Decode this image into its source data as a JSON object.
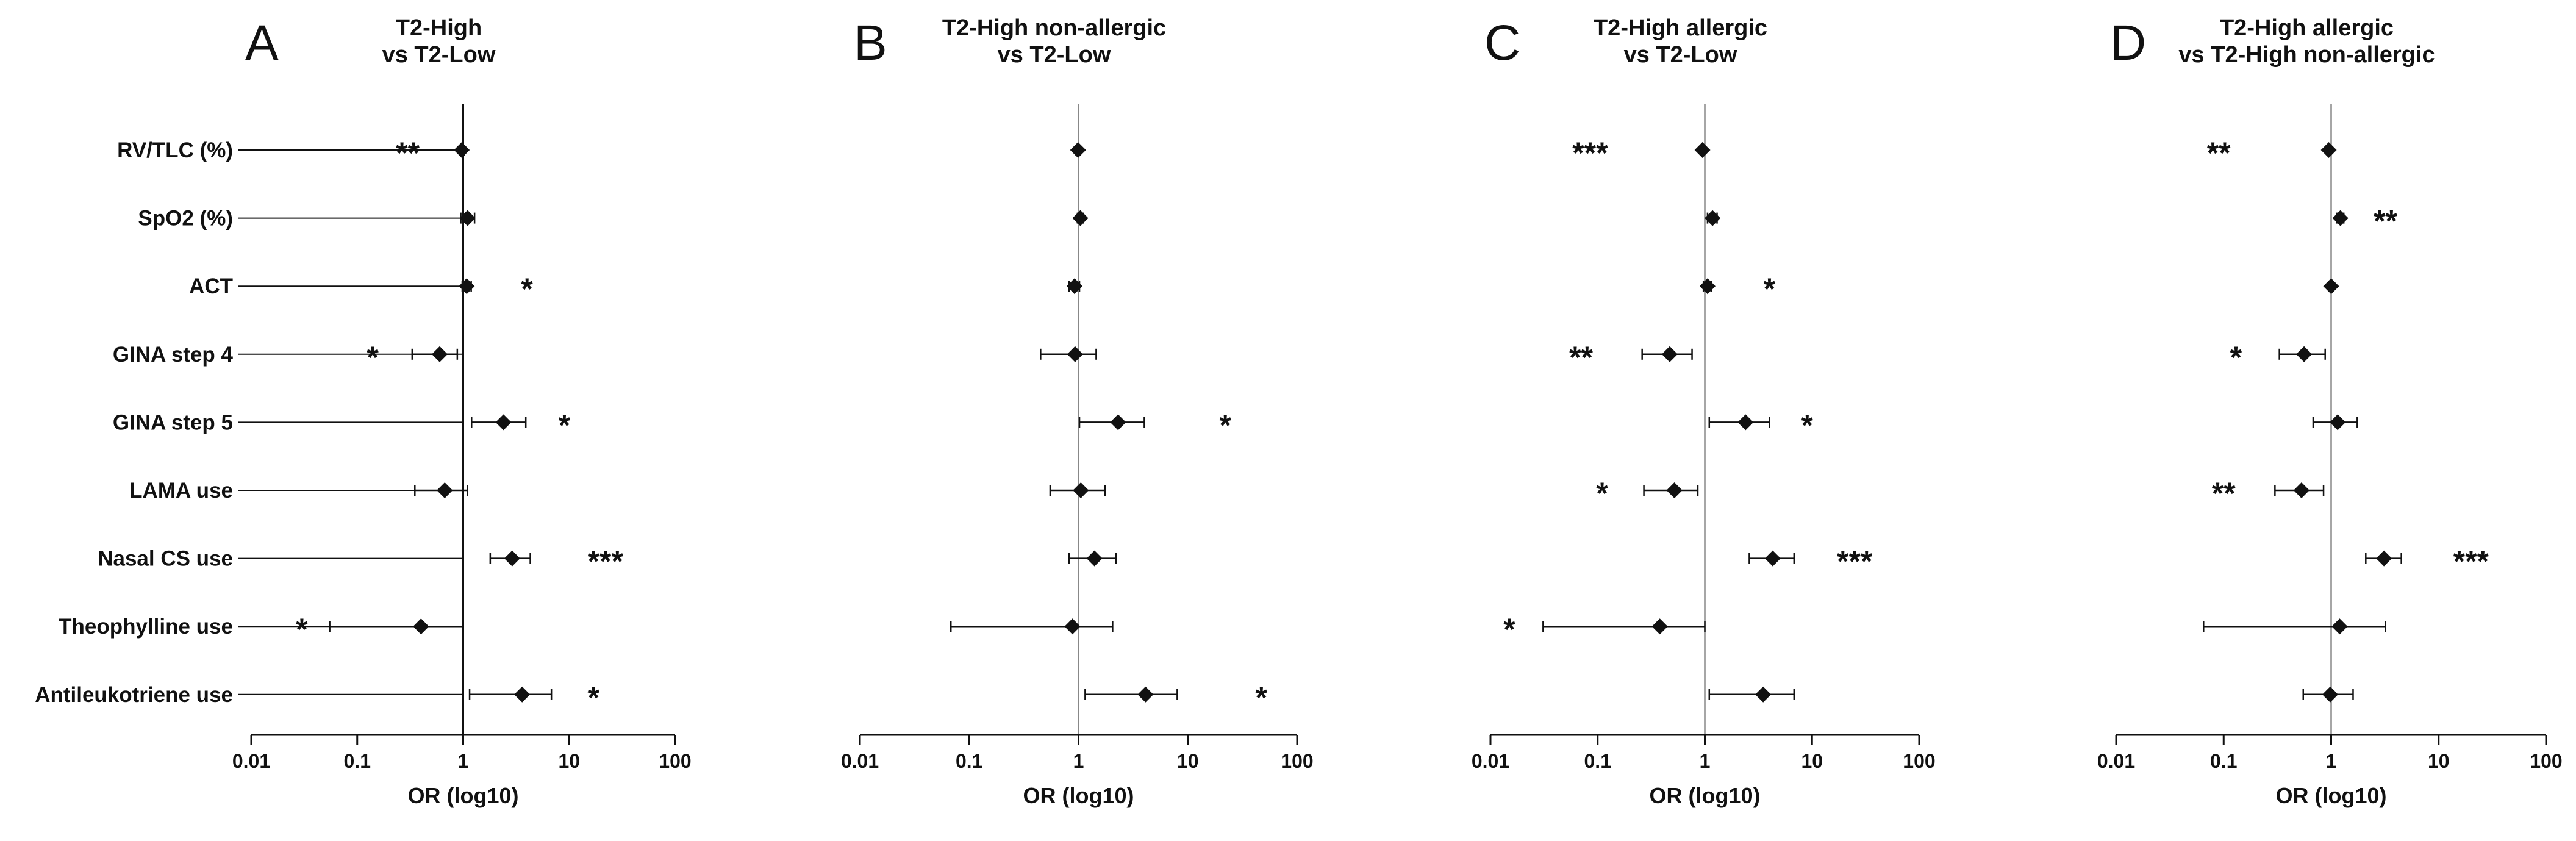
{
  "chart_data": [
    {
      "type": "forest",
      "letter": "A",
      "title": [
        "T2-High",
        "vs T2-Low"
      ],
      "xlabel": "OR (log10)",
      "xscale": "log",
      "xlim": [
        0.01,
        100
      ],
      "xticks": [
        "0.01",
        "0.1",
        "1",
        "10",
        "100"
      ],
      "reference_line": 1,
      "show_category_labels": true,
      "categories": [
        "RV/TLC (%)",
        "SpO2 (%)",
        "ACT",
        "GINA step 4",
        "GINA step 5",
        "LAMA use",
        "Nasal CS use",
        "Theophylline use",
        "Antileukotriene use"
      ],
      "or": [
        0.97,
        1.1,
        1.08,
        0.6,
        2.4,
        0.67,
        2.9,
        0.4,
        3.6
      ],
      "ci_low": [
        0.93,
        0.95,
        0.98,
        0.33,
        1.2,
        0.35,
        1.8,
        0.055,
        1.15
      ],
      "ci_high": [
        1.02,
        1.28,
        1.19,
        0.88,
        3.9,
        1.1,
        4.3,
        1.0,
        6.8
      ],
      "significance": [
        "**",
        "",
        "*",
        "*",
        "*",
        "",
        "***",
        "*",
        "*"
      ],
      "sig_x": [
        0.3,
        null,
        4.0,
        0.14,
        9.0,
        null,
        22,
        0.03,
        17
      ]
    },
    {
      "type": "forest",
      "letter": "B",
      "title": [
        "T2-High non-allergic",
        "vs T2-Low"
      ],
      "xlabel": "OR (log10)",
      "xscale": "log",
      "xlim": [
        0.01,
        100
      ],
      "xticks": [
        "0.01",
        "0.1",
        "1",
        "10",
        "100"
      ],
      "reference_line": 1,
      "show_category_labels": false,
      "categories": [
        "RV/TLC (%)",
        "SpO2 (%)",
        "ACT",
        "GINA step 4",
        "GINA step 5",
        "LAMA use",
        "Nasal CS use",
        "Theophylline use",
        "Antileukotriene use"
      ],
      "or": [
        0.99,
        1.04,
        0.92,
        0.93,
        2.3,
        1.05,
        1.4,
        0.88,
        4.1
      ],
      "ci_low": [
        0.95,
        0.98,
        0.82,
        0.45,
        1.02,
        0.55,
        0.82,
        0.068,
        1.15
      ],
      "ci_high": [
        1.03,
        1.1,
        1.02,
        1.45,
        4.0,
        1.75,
        2.2,
        2.05,
        8.0
      ],
      "significance": [
        "",
        "",
        "",
        "",
        "*",
        "",
        "",
        "",
        "*"
      ],
      "sig_x": [
        null,
        null,
        null,
        null,
        22,
        null,
        null,
        null,
        47
      ]
    },
    {
      "type": "forest",
      "letter": "C",
      "title": [
        "T2-High allergic",
        "vs T2-Low"
      ],
      "xlabel": "OR (log10)",
      "xscale": "log",
      "xlim": [
        0.01,
        100
      ],
      "xticks": [
        "0.01",
        "0.1",
        "1",
        "10",
        "100"
      ],
      "reference_line": 1,
      "show_category_labels": false,
      "categories": [
        "RV/TLC (%)",
        "SpO2 (%)",
        "ACT",
        "GINA step 4",
        "GINA step 5",
        "LAMA use",
        "Nasal CS use",
        "Theophylline use",
        "Antileukotriene use"
      ],
      "or": [
        0.95,
        1.18,
        1.06,
        0.47,
        2.4,
        0.52,
        4.3,
        0.38,
        3.5
      ],
      "ci_low": [
        0.92,
        1.06,
        0.97,
        0.26,
        1.1,
        0.27,
        2.6,
        0.031,
        1.1
      ],
      "ci_high": [
        0.98,
        1.3,
        1.15,
        0.76,
        4.0,
        0.86,
        6.8,
        1.0,
        6.8
      ],
      "significance": [
        "***",
        "",
        "*",
        "**",
        "*",
        "*",
        "***",
        "*",
        ""
      ],
      "sig_x": [
        0.085,
        null,
        4.0,
        0.07,
        9.0,
        0.11,
        25,
        0.015,
        19
      ]
    },
    {
      "type": "forest",
      "letter": "D",
      "title": [
        "T2-High allergic",
        "vs T2-High non-allergic"
      ],
      "xlabel": "OR (log10)",
      "xscale": "log",
      "xlim": [
        0.01,
        100
      ],
      "xticks": [
        "0.01",
        "0.1",
        "1",
        "10",
        "100"
      ],
      "reference_line": 1,
      "show_category_labels": false,
      "categories": [
        "RV/TLC (%)",
        "SpO2 (%)",
        "ACT",
        "GINA step 4",
        "GINA step 5",
        "LAMA use",
        "Nasal CS use",
        "Theophylline use",
        "Antileukotriene use"
      ],
      "or": [
        0.95,
        1.22,
        1.0,
        0.56,
        1.15,
        0.53,
        3.1,
        1.2,
        0.98
      ],
      "ci_low": [
        0.92,
        1.13,
        0.96,
        0.33,
        0.68,
        0.3,
        2.1,
        0.065,
        0.55
      ],
      "ci_high": [
        0.98,
        1.31,
        1.05,
        0.88,
        1.75,
        0.85,
        4.5,
        3.2,
        1.6
      ],
      "significance": [
        "**",
        "**",
        "",
        "*",
        "",
        "**",
        "***",
        "",
        ""
      ],
      "sig_x": [
        0.09,
        3.2,
        null,
        0.13,
        null,
        0.1,
        20,
        null,
        null
      ]
    }
  ]
}
